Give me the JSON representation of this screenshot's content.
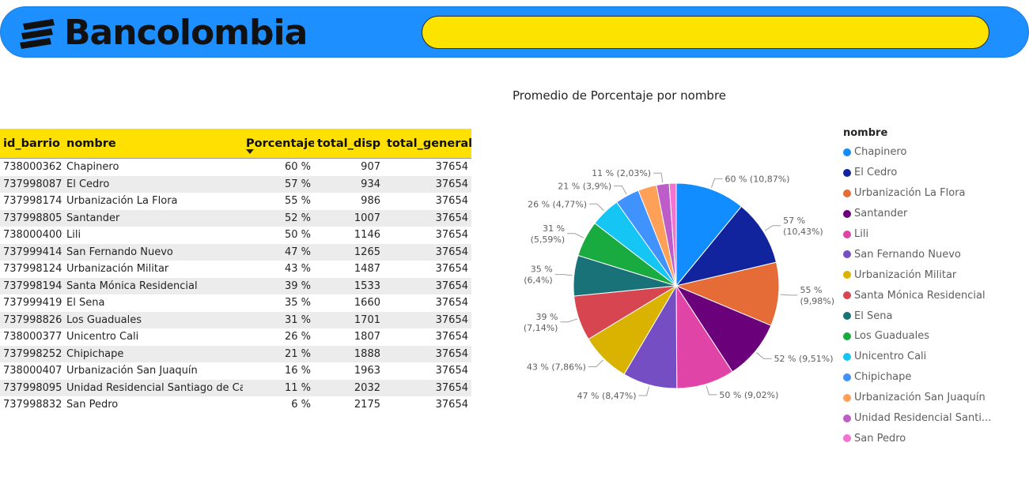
{
  "header": {
    "brand": "Bancolombia",
    "brand_color": "#1e8fff",
    "search_color": "#fde300"
  },
  "table": {
    "columns": [
      "id_barrio",
      "nombre",
      "Porcentaje",
      "total_disp",
      "total_general"
    ],
    "sorted_column": "Porcentaje",
    "rows": [
      [
        "738000362",
        "Chapinero",
        "60 %",
        "907",
        "37654"
      ],
      [
        "737998087",
        "El Cedro",
        "57 %",
        "934",
        "37654"
      ],
      [
        "737998174",
        "Urbanización La Flora",
        "55 %",
        "986",
        "37654"
      ],
      [
        "737998805",
        "Santander",
        "52 %",
        "1007",
        "37654"
      ],
      [
        "738000400",
        "Lili",
        "50 %",
        "1146",
        "37654"
      ],
      [
        "737999414",
        "San Fernando Nuevo",
        "47 %",
        "1265",
        "37654"
      ],
      [
        "737998124",
        "Urbanización Militar",
        "43 %",
        "1487",
        "37654"
      ],
      [
        "737998194",
        "Santa Mónica Residencial",
        "39 %",
        "1533",
        "37654"
      ],
      [
        "737999419",
        "El Sena",
        "35 %",
        "1660",
        "37654"
      ],
      [
        "737998826",
        "Los Guaduales",
        "31 %",
        "1701",
        "37654"
      ],
      [
        "738000377",
        "Unicentro Cali",
        "26 %",
        "1807",
        "37654"
      ],
      [
        "737998252",
        "Chipichape",
        "21 %",
        "1888",
        "37654"
      ],
      [
        "738000407",
        "Urbanización San Juaquín",
        "16 %",
        "1963",
        "37654"
      ],
      [
        "737998095",
        "Unidad Residencial Santiago de Cali",
        "11 %",
        "2032",
        "37654"
      ],
      [
        "737998832",
        "San Pedro",
        "6 %",
        "2175",
        "37654"
      ]
    ]
  },
  "chart_data": {
    "type": "pie",
    "title": "Promedio de Porcentaje por nombre",
    "legend_title": "nombre",
    "legend_position": "right",
    "categories": [
      "Chapinero",
      "El Cedro",
      "Urbanización La Flora",
      "Santander",
      "Lili",
      "San Fernando Nuevo",
      "Urbanización Militar",
      "Santa Mónica Residencial",
      "El Sena",
      "Los Guaduales",
      "Unicentro Cali",
      "Chipichape",
      "Urbanización San Juaquín",
      "Unidad Residencial Santiago de Cali",
      "San Pedro"
    ],
    "legend_labels": [
      "Chapinero",
      "El Cedro",
      "Urbanización La Flora",
      "Santander",
      "Lili",
      "San Fernando Nuevo",
      "Urbanización Militar",
      "Santa Mónica Residencial",
      "El Sena",
      "Los Guaduales",
      "Unicentro Cali",
      "Chipichape",
      "Urbanización San Juaquín",
      "Unidad Residencial Santi...",
      "San Pedro"
    ],
    "values": [
      60,
      57,
      55,
      52,
      50,
      47,
      43,
      39,
      35,
      31,
      26,
      21,
      16,
      11,
      6
    ],
    "shares": [
      10.87,
      10.43,
      9.98,
      9.51,
      9.02,
      8.47,
      7.86,
      7.14,
      6.4,
      5.59,
      4.77,
      3.9,
      2.99,
      2.03,
      1.0
    ],
    "data_labels": [
      [
        "60 % (10,87%)"
      ],
      [
        "57 %",
        "(10,43%)"
      ],
      [
        "55 %",
        "(9,98%)"
      ],
      [
        "52 % (9,51%)"
      ],
      [
        "50 % (9,02%)"
      ],
      [
        "47 % (8,47%)"
      ],
      [
        "43 % (7,86%)"
      ],
      [
        "39 %",
        "(7,14%)"
      ],
      [
        "35 %",
        "(6,4%)"
      ],
      [
        "31 %",
        "(5,59%)"
      ],
      [
        "26 % (4,77%)"
      ],
      [
        "21 % (3,9%)"
      ],
      [],
      [
        "11 % (2,03%)"
      ],
      []
    ],
    "colors": [
      "#118dff",
      "#12239e",
      "#e66c37",
      "#6b007b",
      "#e044a7",
      "#744ec2",
      "#d9b300",
      "#d64550",
      "#197278",
      "#1aab40",
      "#15c6f4",
      "#4092ff",
      "#ffa058",
      "#be5dc9",
      "#f472d0"
    ]
  }
}
